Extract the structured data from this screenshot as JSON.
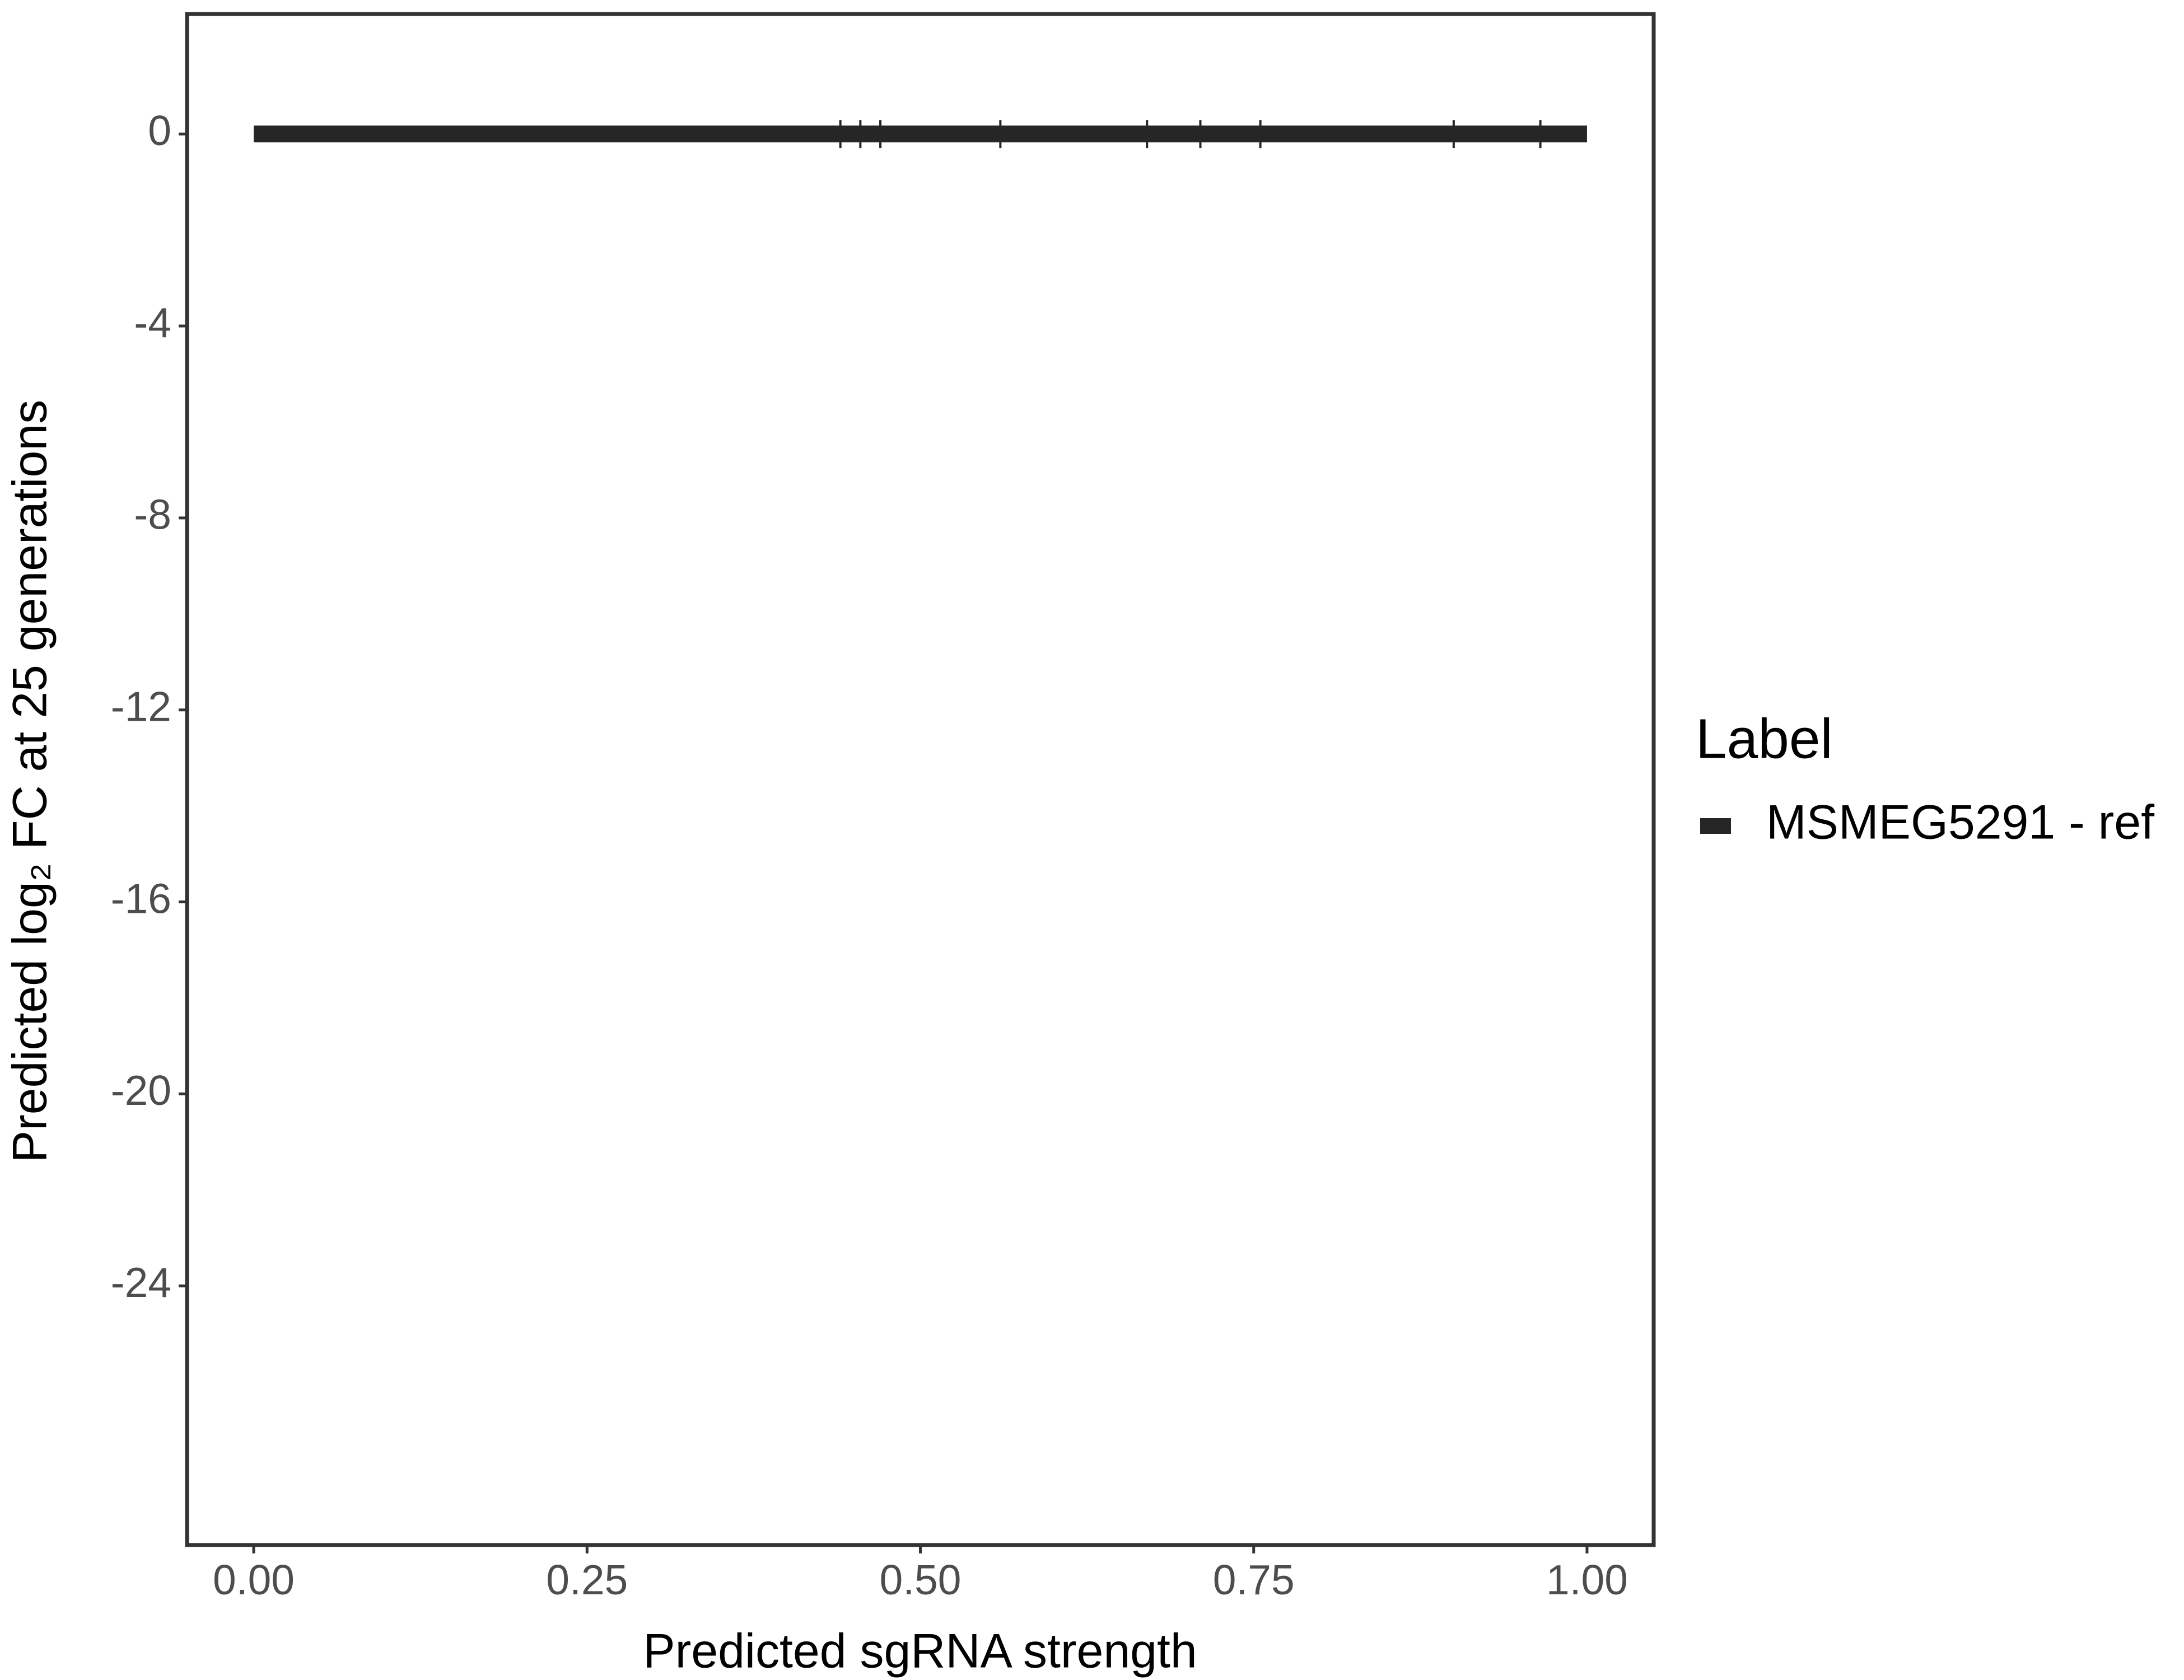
{
  "chart_data": {
    "type": "line",
    "x_label": "Predicted sgRNA strength",
    "y_label": "Predicted log₂ FC at 25 generations",
    "legend_title": "Label",
    "x": [
      0,
      1
    ],
    "series": [
      {
        "name": "MSMEG5291 - ref",
        "color": "#262626",
        "values": [
          0,
          0
        ]
      }
    ],
    "rug_x": [
      0.44,
      0.455,
      0.47,
      0.56,
      0.67,
      0.71,
      0.755,
      0.9,
      0.965
    ],
    "xlim": [
      -0.05,
      1.05
    ],
    "ylim": [
      -29.4,
      2.5
    ],
    "xticks": [
      {
        "value": 0,
        "label": "0.00"
      },
      0.25,
      {
        "value": 0.5,
        "label": "0.50"
      },
      0.75,
      {
        "value": 1,
        "label": "1.00"
      }
    ],
    "yticks": [
      0,
      -4,
      -8,
      -12,
      -16,
      -20,
      -24
    ],
    "grid": false,
    "legend": "right"
  }
}
